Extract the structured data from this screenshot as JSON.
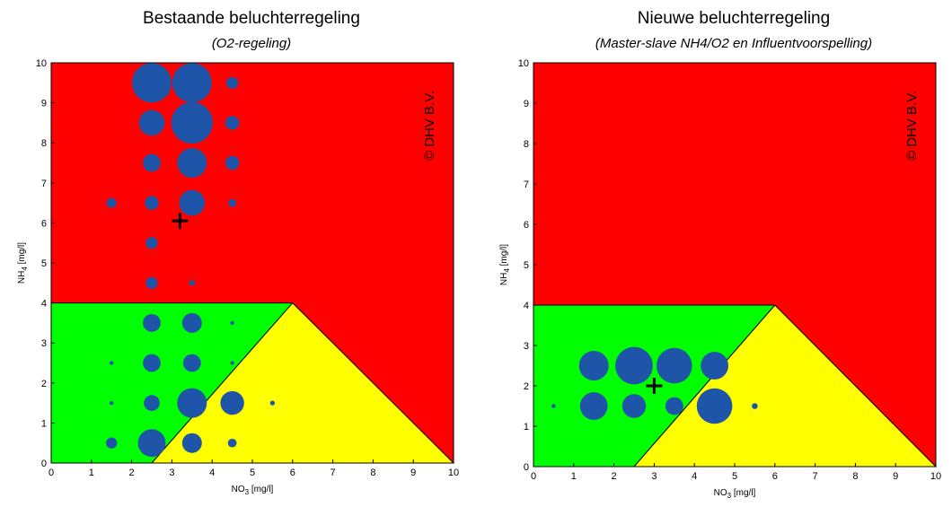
{
  "chart_data": [
    {
      "type": "scatter",
      "title": "Bestaande beluchterregeling",
      "subtitle": "(O2-regeling)",
      "xlabel": "NO3 [mg/l]",
      "ylabel": "NH4 [mg/l]",
      "xlim": [
        0,
        10
      ],
      "ylim": [
        0,
        10
      ],
      "xticks": [
        "0",
        "1",
        "2",
        "3",
        "4",
        "5",
        "6",
        "7",
        "8",
        "9",
        "10"
      ],
      "yticks": [
        "0",
        "1",
        "2",
        "3",
        "4",
        "5",
        "6",
        "7",
        "8",
        "9",
        "10"
      ],
      "watermark": "© DHV B.V.",
      "regions": [
        {
          "zone": "red",
          "color": "#ff0000"
        },
        {
          "zone": "green",
          "polygon": [
            [
              0,
              0
            ],
            [
              2.5,
              0
            ],
            [
              6,
              4
            ],
            [
              0,
              4
            ]
          ],
          "color": "#00ff00"
        },
        {
          "zone": "yellow",
          "polygon": [
            [
              2.5,
              0
            ],
            [
              10,
              0
            ],
            [
              6,
              4
            ]
          ],
          "color": "#ffff00"
        }
      ],
      "marker_color": "#1e55a8",
      "marker": {
        "symbol": "+",
        "x": 3.2,
        "y": 6.05
      },
      "points": [
        {
          "x": 2.5,
          "y": 9.5,
          "size": 1.0
        },
        {
          "x": 3.5,
          "y": 9.5,
          "size": 1.0
        },
        {
          "x": 4.5,
          "y": 9.5,
          "size": 0.3
        },
        {
          "x": 2.5,
          "y": 8.5,
          "size": 0.65
        },
        {
          "x": 3.5,
          "y": 8.5,
          "size": 1.05
        },
        {
          "x": 4.5,
          "y": 8.5,
          "size": 0.35
        },
        {
          "x": 2.5,
          "y": 7.5,
          "size": 0.45
        },
        {
          "x": 3.5,
          "y": 7.5,
          "size": 0.75
        },
        {
          "x": 4.5,
          "y": 7.5,
          "size": 0.35
        },
        {
          "x": 1.5,
          "y": 6.5,
          "size": 0.25
        },
        {
          "x": 2.5,
          "y": 6.5,
          "size": 0.35
        },
        {
          "x": 3.5,
          "y": 6.5,
          "size": 0.65
        },
        {
          "x": 4.5,
          "y": 6.5,
          "size": 0.2
        },
        {
          "x": 2.5,
          "y": 5.5,
          "size": 0.3
        },
        {
          "x": 2.5,
          "y": 4.5,
          "size": 0.3
        },
        {
          "x": 3.5,
          "y": 4.5,
          "size": 0.15
        },
        {
          "x": 2.5,
          "y": 3.5,
          "size": 0.45
        },
        {
          "x": 3.5,
          "y": 3.5,
          "size": 0.5
        },
        {
          "x": 4.5,
          "y": 3.5,
          "size": 0.1
        },
        {
          "x": 1.5,
          "y": 2.5,
          "size": 0.1
        },
        {
          "x": 2.5,
          "y": 2.5,
          "size": 0.45
        },
        {
          "x": 3.5,
          "y": 2.5,
          "size": 0.45
        },
        {
          "x": 4.5,
          "y": 2.5,
          "size": 0.1
        },
        {
          "x": 1.5,
          "y": 1.5,
          "size": 0.1
        },
        {
          "x": 2.5,
          "y": 1.5,
          "size": 0.4
        },
        {
          "x": 3.5,
          "y": 1.5,
          "size": 0.75
        },
        {
          "x": 4.5,
          "y": 1.5,
          "size": 0.6
        },
        {
          "x": 5.5,
          "y": 1.5,
          "size": 0.12
        },
        {
          "x": 1.5,
          "y": 0.5,
          "size": 0.28
        },
        {
          "x": 2.5,
          "y": 0.5,
          "size": 0.7
        },
        {
          "x": 3.5,
          "y": 0.5,
          "size": 0.5
        },
        {
          "x": 4.5,
          "y": 0.5,
          "size": 0.22
        }
      ]
    },
    {
      "type": "scatter",
      "title": "Nieuwe beluchterregeling",
      "subtitle": "(Master-slave NH4/O2 en Influentvoorspelling)",
      "xlabel": "NO3 [mg/l]",
      "ylabel": "NH4 [mg/l]",
      "xlim": [
        0,
        10
      ],
      "ylim": [
        0,
        10
      ],
      "xticks": [
        "0",
        "1",
        "2",
        "3",
        "4",
        "5",
        "6",
        "7",
        "8",
        "9",
        "10"
      ],
      "yticks": [
        "0",
        "1",
        "2",
        "3",
        "4",
        "5",
        "6",
        "7",
        "8",
        "9",
        "10"
      ],
      "watermark": "© DHV B.V.",
      "regions": [
        {
          "zone": "red",
          "color": "#ff0000"
        },
        {
          "zone": "green",
          "polygon": [
            [
              0,
              0
            ],
            [
              2.5,
              0
            ],
            [
              6,
              4
            ],
            [
              0,
              4
            ]
          ],
          "color": "#00ff00"
        },
        {
          "zone": "yellow",
          "polygon": [
            [
              2.5,
              0
            ],
            [
              10,
              0
            ],
            [
              6,
              4
            ]
          ],
          "color": "#ffff00"
        }
      ],
      "marker_color": "#1e55a8",
      "marker": {
        "symbol": "+",
        "x": 3.0,
        "y": 2.0
      },
      "points": [
        {
          "x": 1.5,
          "y": 2.5,
          "size": 0.75
        },
        {
          "x": 2.5,
          "y": 2.5,
          "size": 0.95
        },
        {
          "x": 3.5,
          "y": 2.5,
          "size": 0.9
        },
        {
          "x": 4.5,
          "y": 2.5,
          "size": 0.7
        },
        {
          "x": 0.5,
          "y": 1.5,
          "size": 0.1
        },
        {
          "x": 1.5,
          "y": 1.5,
          "size": 0.7
        },
        {
          "x": 2.5,
          "y": 1.5,
          "size": 0.6
        },
        {
          "x": 3.5,
          "y": 1.5,
          "size": 0.45
        },
        {
          "x": 4.5,
          "y": 1.5,
          "size": 0.9
        },
        {
          "x": 5.5,
          "y": 1.5,
          "size": 0.15
        }
      ]
    }
  ]
}
